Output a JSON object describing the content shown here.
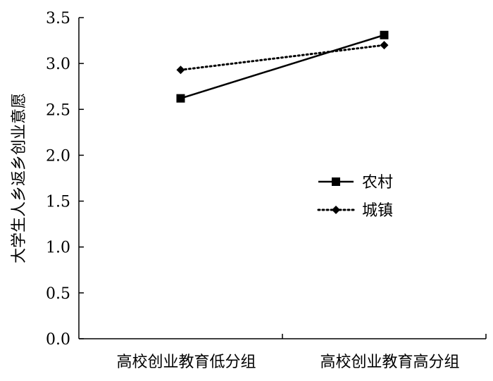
{
  "chart_data": {
    "type": "line",
    "title": "",
    "xlabel": "",
    "ylabel": "大学生人乡返乡创业意愿",
    "categories": [
      "高校创业教育低分组",
      "高校创业教育高分组"
    ],
    "ylim": [
      0.0,
      3.5
    ],
    "yticks": [
      "0.0",
      "0.5",
      "1.0",
      "1.5",
      "2.0",
      "2.5",
      "3.0",
      "3.5"
    ],
    "grid": false,
    "legend_position": "right-middle",
    "series": [
      {
        "name": "农村",
        "values": [
          2.62,
          3.31
        ],
        "line_style": "solid",
        "marker": "square",
        "color": "#000000"
      },
      {
        "name": "城镇",
        "values": [
          2.93,
          3.2
        ],
        "line_style": "dotted",
        "marker": "diamond",
        "color": "#000000"
      }
    ]
  }
}
